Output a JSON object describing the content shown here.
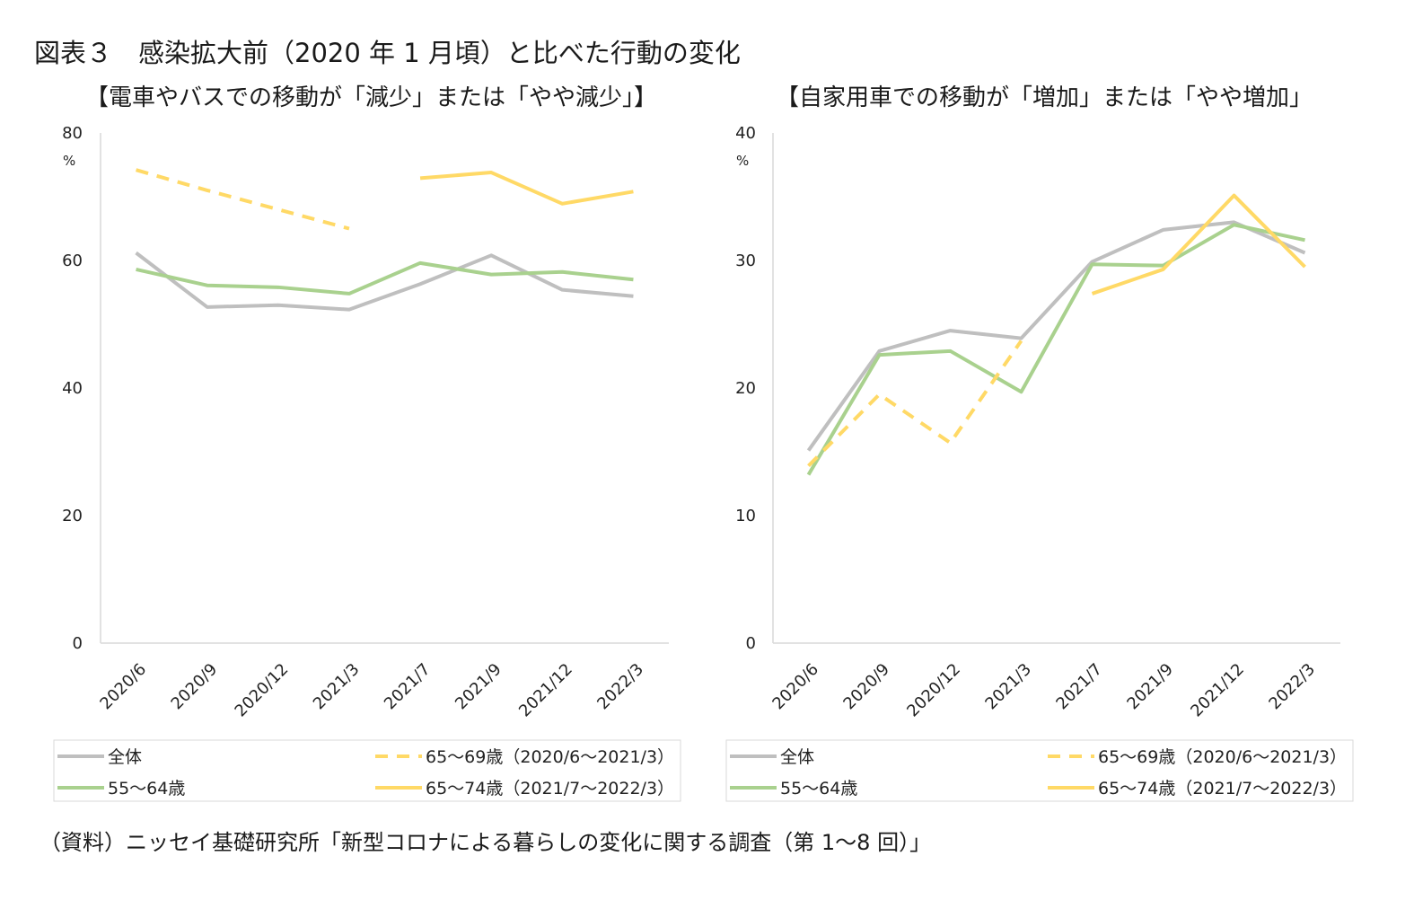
{
  "figure_title": "図表３　感染拡大前（2020 年 1 月頃）と比べた行動の変化",
  "source_note": "（資料）ニッセイ基礎研究所「新型コロナによる暮らしの変化に関する調査（第 1～8 回）」",
  "colors": {
    "overall": "#bfbfbf",
    "age55_64": "#a9d18e",
    "age65_69": "#ffd966",
    "age65_74": "#ffd966"
  },
  "chart_data": [
    {
      "type": "line",
      "title": "【電車やバスでの移動が「減少」または「やや減少」】",
      "unit_label": "%",
      "ylim": [
        0,
        80
      ],
      "yticks": [
        "0",
        "20",
        "40",
        "60",
        "80"
      ],
      "categories": [
        "2020/6",
        "2020/9",
        "2020/12",
        "2021/3",
        "2021/7",
        "2021/9",
        "2021/12",
        "2022/3"
      ],
      "legend": "bottom",
      "series": [
        {
          "name": "全体",
          "style": "solid",
          "color": "#bfbfbf",
          "values": [
            61.2,
            52.7,
            53.0,
            52.3,
            56.3,
            60.8,
            55.4,
            54.4
          ]
        },
        {
          "name": "55～64歳",
          "style": "solid",
          "color": "#a9d18e",
          "values": [
            58.6,
            56.1,
            55.8,
            54.8,
            59.6,
            57.8,
            58.2,
            57.0
          ]
        },
        {
          "name": "65～69歳（2020/6～2021/3）",
          "style": "dashed",
          "color": "#ffd966",
          "values": [
            74.2,
            71.0,
            68.0,
            65.0,
            null,
            null,
            null,
            null
          ]
        },
        {
          "name": "65～74歳（2021/7～2022/3）",
          "style": "solid",
          "color": "#ffd966",
          "values": [
            null,
            null,
            null,
            null,
            72.9,
            73.8,
            68.9,
            70.8
          ]
        }
      ]
    },
    {
      "type": "line",
      "title": "【自家用車での移動が「増加」または「やや増加」",
      "unit_label": "%",
      "ylim": [
        0,
        40
      ],
      "yticks": [
        "0",
        "10",
        "20",
        "30",
        "40"
      ],
      "categories": [
        "2020/6",
        "2020/9",
        "2020/12",
        "2021/3",
        "2021/7",
        "2021/9",
        "2021/12",
        "2022/3"
      ],
      "legend": "bottom",
      "series": [
        {
          "name": "全体",
          "style": "solid",
          "color": "#bfbfbf",
          "values": [
            15.1,
            22.9,
            24.5,
            23.9,
            29.9,
            32.4,
            33.0,
            30.6
          ]
        },
        {
          "name": "55～64歳",
          "style": "solid",
          "color": "#a9d18e",
          "values": [
            13.2,
            22.6,
            22.9,
            19.7,
            29.7,
            29.6,
            32.8,
            31.6
          ]
        },
        {
          "name": "65～69歳（2020/6～2021/3）",
          "style": "dashed",
          "color": "#ffd966",
          "values": [
            13.9,
            19.5,
            15.7,
            23.7,
            null,
            null,
            null,
            null
          ]
        },
        {
          "name": "65～74歳（2021/7～2022/3）",
          "style": "solid",
          "color": "#ffd966",
          "values": [
            null,
            null,
            null,
            null,
            27.4,
            29.3,
            35.1,
            29.5
          ]
        }
      ]
    }
  ]
}
